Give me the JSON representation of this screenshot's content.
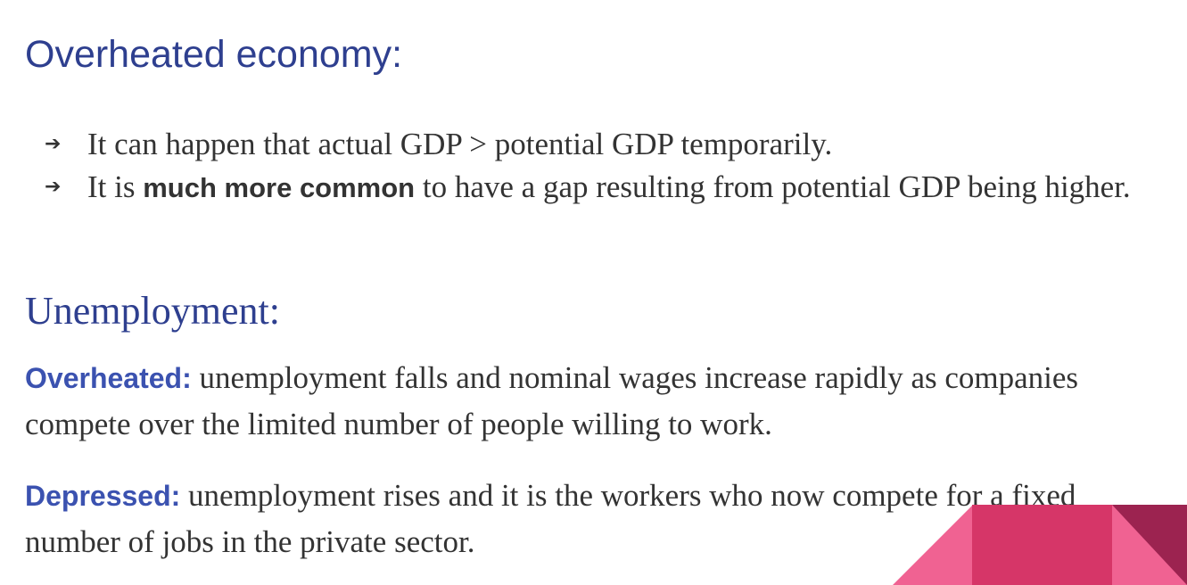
{
  "title": "Overheated economy:",
  "bullets": [
    {
      "text": "It can happen that actual GDP > potential GDP temporarily."
    },
    {
      "prefix": "It is ",
      "emphasis": "much more common",
      "suffix": "  to have a gap resulting from potential GDP being higher."
    }
  ],
  "section2": {
    "title": "Unemployment:",
    "paragraphs": [
      {
        "term": "Overheated:",
        "text": " unemployment falls and nominal wages increase rapidly as companies compete over the limited number of people willing to work."
      },
      {
        "term": "Depressed:",
        "text": " unemployment rises and it is the workers who now compete for a fixed number of jobs in the private sector."
      }
    ]
  },
  "decoration": {
    "colors": [
      "#f06292",
      "#d63668",
      "#9c2350"
    ]
  }
}
